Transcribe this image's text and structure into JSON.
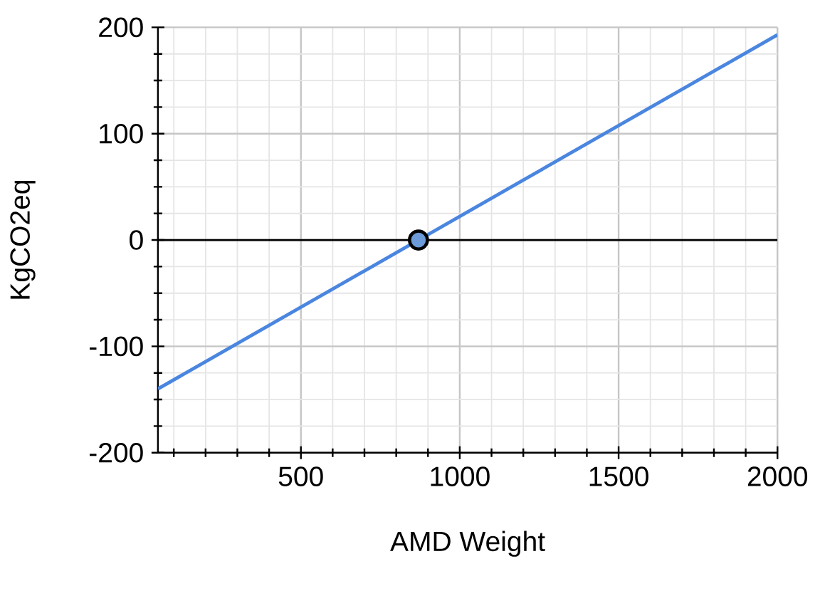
{
  "chart_data": {
    "type": "line",
    "xlabel": "AMD Weight",
    "ylabel": "KgCO2eq",
    "xlim": [
      50,
      2000
    ],
    "ylim": [
      -200,
      200
    ],
    "xticks": [
      {
        "value": 100,
        "label": null
      },
      {
        "value": 200,
        "label": null
      },
      {
        "value": 300,
        "label": null
      },
      {
        "value": 400,
        "label": null
      },
      500,
      {
        "value": 600,
        "label": null
      },
      {
        "value": 700,
        "label": null
      },
      {
        "value": 800,
        "label": null
      },
      {
        "value": 900,
        "label": null
      },
      1000,
      {
        "value": 1100,
        "label": null
      },
      {
        "value": 1200,
        "label": null
      },
      {
        "value": 1300,
        "label": null
      },
      {
        "value": 1400,
        "label": null
      },
      1500,
      {
        "value": 1600,
        "label": null
      },
      {
        "value": 1700,
        "label": null
      },
      {
        "value": 1800,
        "label": null
      },
      {
        "value": 1900,
        "label": null
      },
      2000
    ],
    "yticks": [
      -200,
      {
        "value": -175,
        "label": null
      },
      {
        "value": -150,
        "label": null
      },
      {
        "value": -125,
        "label": null
      },
      -100,
      {
        "value": -75,
        "label": null
      },
      {
        "value": -50,
        "label": null
      },
      {
        "value": -25,
        "label": null
      },
      0,
      {
        "value": 25,
        "label": null
      },
      {
        "value": 50,
        "label": null
      },
      {
        "value": 75,
        "label": null
      },
      100,
      {
        "value": 125,
        "label": null
      },
      {
        "value": 150,
        "label": null
      },
      {
        "value": 175,
        "label": null
      },
      200
    ],
    "grid": true,
    "ref_lines": [
      {
        "axis": "y",
        "value": 0,
        "color": "#000000"
      }
    ],
    "series": [
      {
        "color": "#4a86e0",
        "x": [
          50,
          2000
        ],
        "values": [
          -140,
          193
        ],
        "marker": "none"
      },
      {
        "type": "scatter",
        "color": "#6b9bd8",
        "x": [
          870
        ],
        "values": [
          0
        ],
        "marker": "circle"
      }
    ]
  }
}
